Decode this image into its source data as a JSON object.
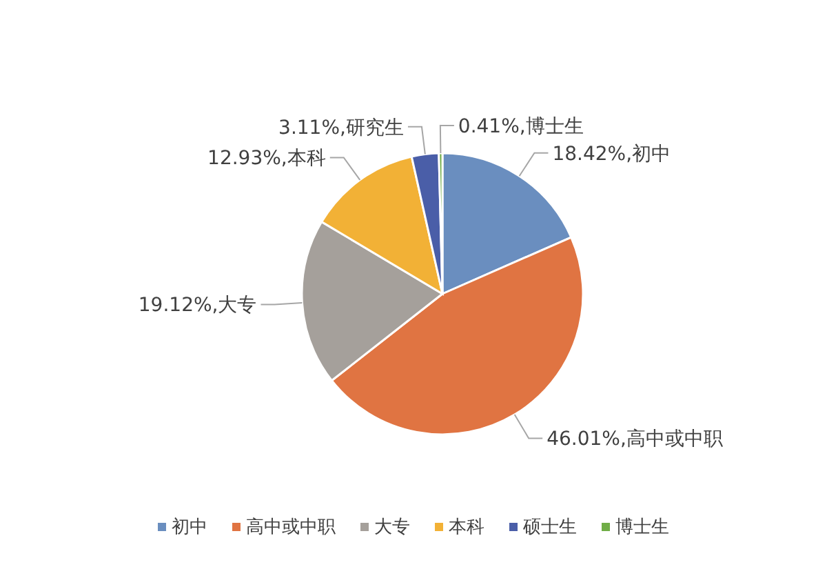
{
  "chart_data": {
    "type": "pie",
    "categories": [
      "初中",
      "高中或中职",
      "大专",
      "本科",
      "硕士生",
      "博士生"
    ],
    "values": [
      18.42,
      46.01,
      19.12,
      12.93,
      3.11,
      0.41
    ],
    "colors": [
      "#6a8ebf",
      "#e07442",
      "#a5a09b",
      "#f2b136",
      "#4a5ea8",
      "#70ad47"
    ],
    "value_labels": [
      "18.42%,初中",
      "46.01%,高中或中职",
      "19.12%,大专",
      "12.93%,本科",
      "3.11%,研究生",
      "0.41%,博士生"
    ],
    "legend": "bottom"
  }
}
